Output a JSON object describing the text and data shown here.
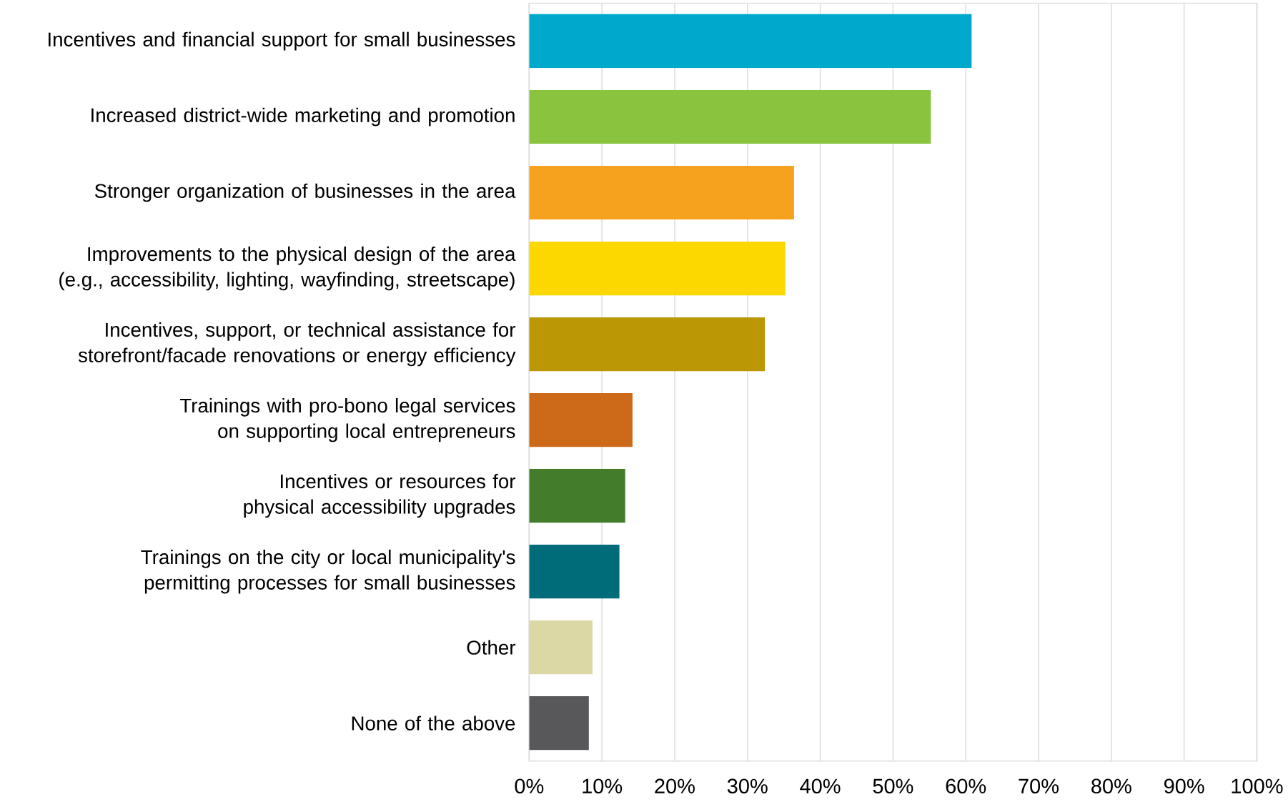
{
  "chart_data": {
    "type": "bar",
    "orientation": "horizontal",
    "categories": [
      "Incentives and financial support for small businesses",
      "Increased district-wide marketing and promotion",
      "Stronger organization of businesses in the area",
      "Improvements to the physical design of the area (e.g., accessibility, lighting, wayfinding, streetscape)",
      "Incentives, support, or technical assistance for storefront/facade renovations or energy efficiency",
      "Trainings with pro-bono legal services on supporting local entrepreneurs",
      "Incentives or resources for physical accessibility upgrades",
      "Trainings on the city or local municipality's permitting processes for small businesses",
      "Other",
      "None of the above"
    ],
    "values": [
      60.8,
      55.2,
      36.4,
      35.2,
      32.4,
      14.2,
      13.2,
      12.4,
      8.7,
      8.2
    ],
    "colors": [
      "#00a8cc",
      "#8ac43f",
      "#f7a21e",
      "#fcd800",
      "#bb9706",
      "#cd6a1a",
      "#437d2c",
      "#006b79",
      "#dcd8a6",
      "#58585a"
    ],
    "xlim": [
      0,
      100
    ],
    "xticks": [
      {
        "value": 0,
        "label": "0%"
      },
      {
        "value": 10,
        "label": "10%"
      },
      {
        "value": 20,
        "label": "20%"
      },
      {
        "value": 30,
        "label": "30%"
      },
      {
        "value": 40,
        "label": "40%"
      },
      {
        "value": 50,
        "label": "50%"
      },
      {
        "value": 60,
        "label": "60%"
      },
      {
        "value": 70,
        "label": "70%"
      },
      {
        "value": 80,
        "label": "80%"
      },
      {
        "value": 90,
        "label": "90%"
      },
      {
        "value": 100,
        "label": "100%"
      }
    ],
    "grid": "x"
  }
}
